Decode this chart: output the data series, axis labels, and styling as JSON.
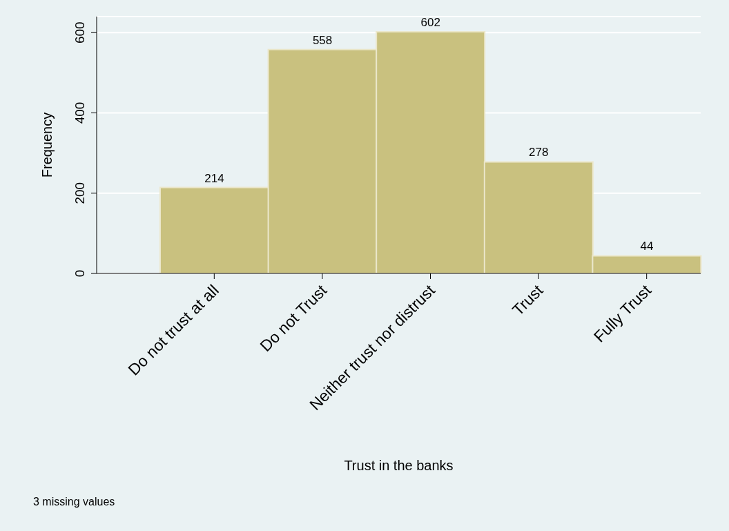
{
  "chart_data": {
    "type": "bar",
    "xlabel": "Trust in the banks",
    "ylabel": "Frequency",
    "categories": [
      "Do not trust at all",
      "Do not Trust",
      "Neither trust nor distrust",
      "Trust",
      "Fully Trust"
    ],
    "values": [
      214,
      558,
      602,
      278,
      44
    ],
    "color": "#c9c17f",
    "ylim": [
      0,
      640
    ],
    "yticks": [
      0,
      200,
      400,
      600
    ],
    "grid": "y",
    "data_labels": true,
    "annotations": [
      "3 missing values"
    ]
  }
}
